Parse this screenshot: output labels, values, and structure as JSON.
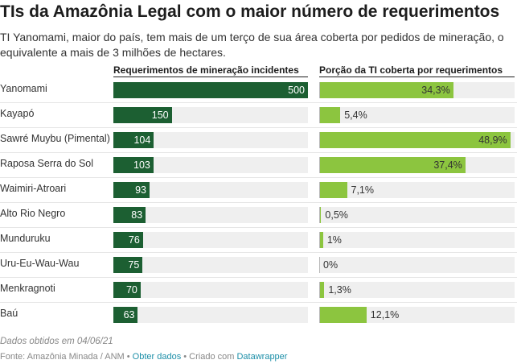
{
  "title": "TIs da Amazônia Legal com o maior número de requerimentos",
  "description": "TI Yanomami, maior do país, tem mais de um terço de sua área coberta por pedidos de mineração, o equivalente a mais de 3 milhões de hectares.",
  "note": "Dados obtidos em 04/06/21",
  "footer": {
    "source": "Fonte: Amazônia Minada / ANM",
    "sep": " • ",
    "get_data": "Obter dados",
    "created_with": "Criado com",
    "tool": "Datawrapper"
  },
  "colors": {
    "dark_green": "#1c5f32",
    "light_green": "#8cc53f",
    "track": "#efefef"
  },
  "chart_data": {
    "type": "bar",
    "categories": [
      "Yanomami",
      "Kayapó",
      "Sawré Muybu (Pimental)",
      "Raposa Serra do Sol",
      "Waimiri-Atroari",
      "Alto Rio Negro",
      "Munduruku",
      "Uru-Eu-Wau-Wau",
      "Menkragnoti",
      "Baú"
    ],
    "series": [
      {
        "name": "Requerimentos de mineração incidentes",
        "values": [
          500,
          150,
          104,
          103,
          93,
          83,
          76,
          75,
          70,
          63
        ],
        "labels": [
          "500",
          "150",
          "104",
          "103",
          "93",
          "83",
          "76",
          "75",
          "70",
          "63"
        ],
        "max": 500
      },
      {
        "name": "Porção da TI coberta por requerimentos",
        "values": [
          34.3,
          5.4,
          48.9,
          37.4,
          7.1,
          0.5,
          1,
          0,
          1.3,
          12.1
        ],
        "labels": [
          "34,3%",
          "5,4%",
          "48,9%",
          "37,4%",
          "7,1%",
          "0,5%",
          "1%",
          "0%",
          "1,3%",
          "12,1%"
        ],
        "max": 50
      }
    ]
  }
}
